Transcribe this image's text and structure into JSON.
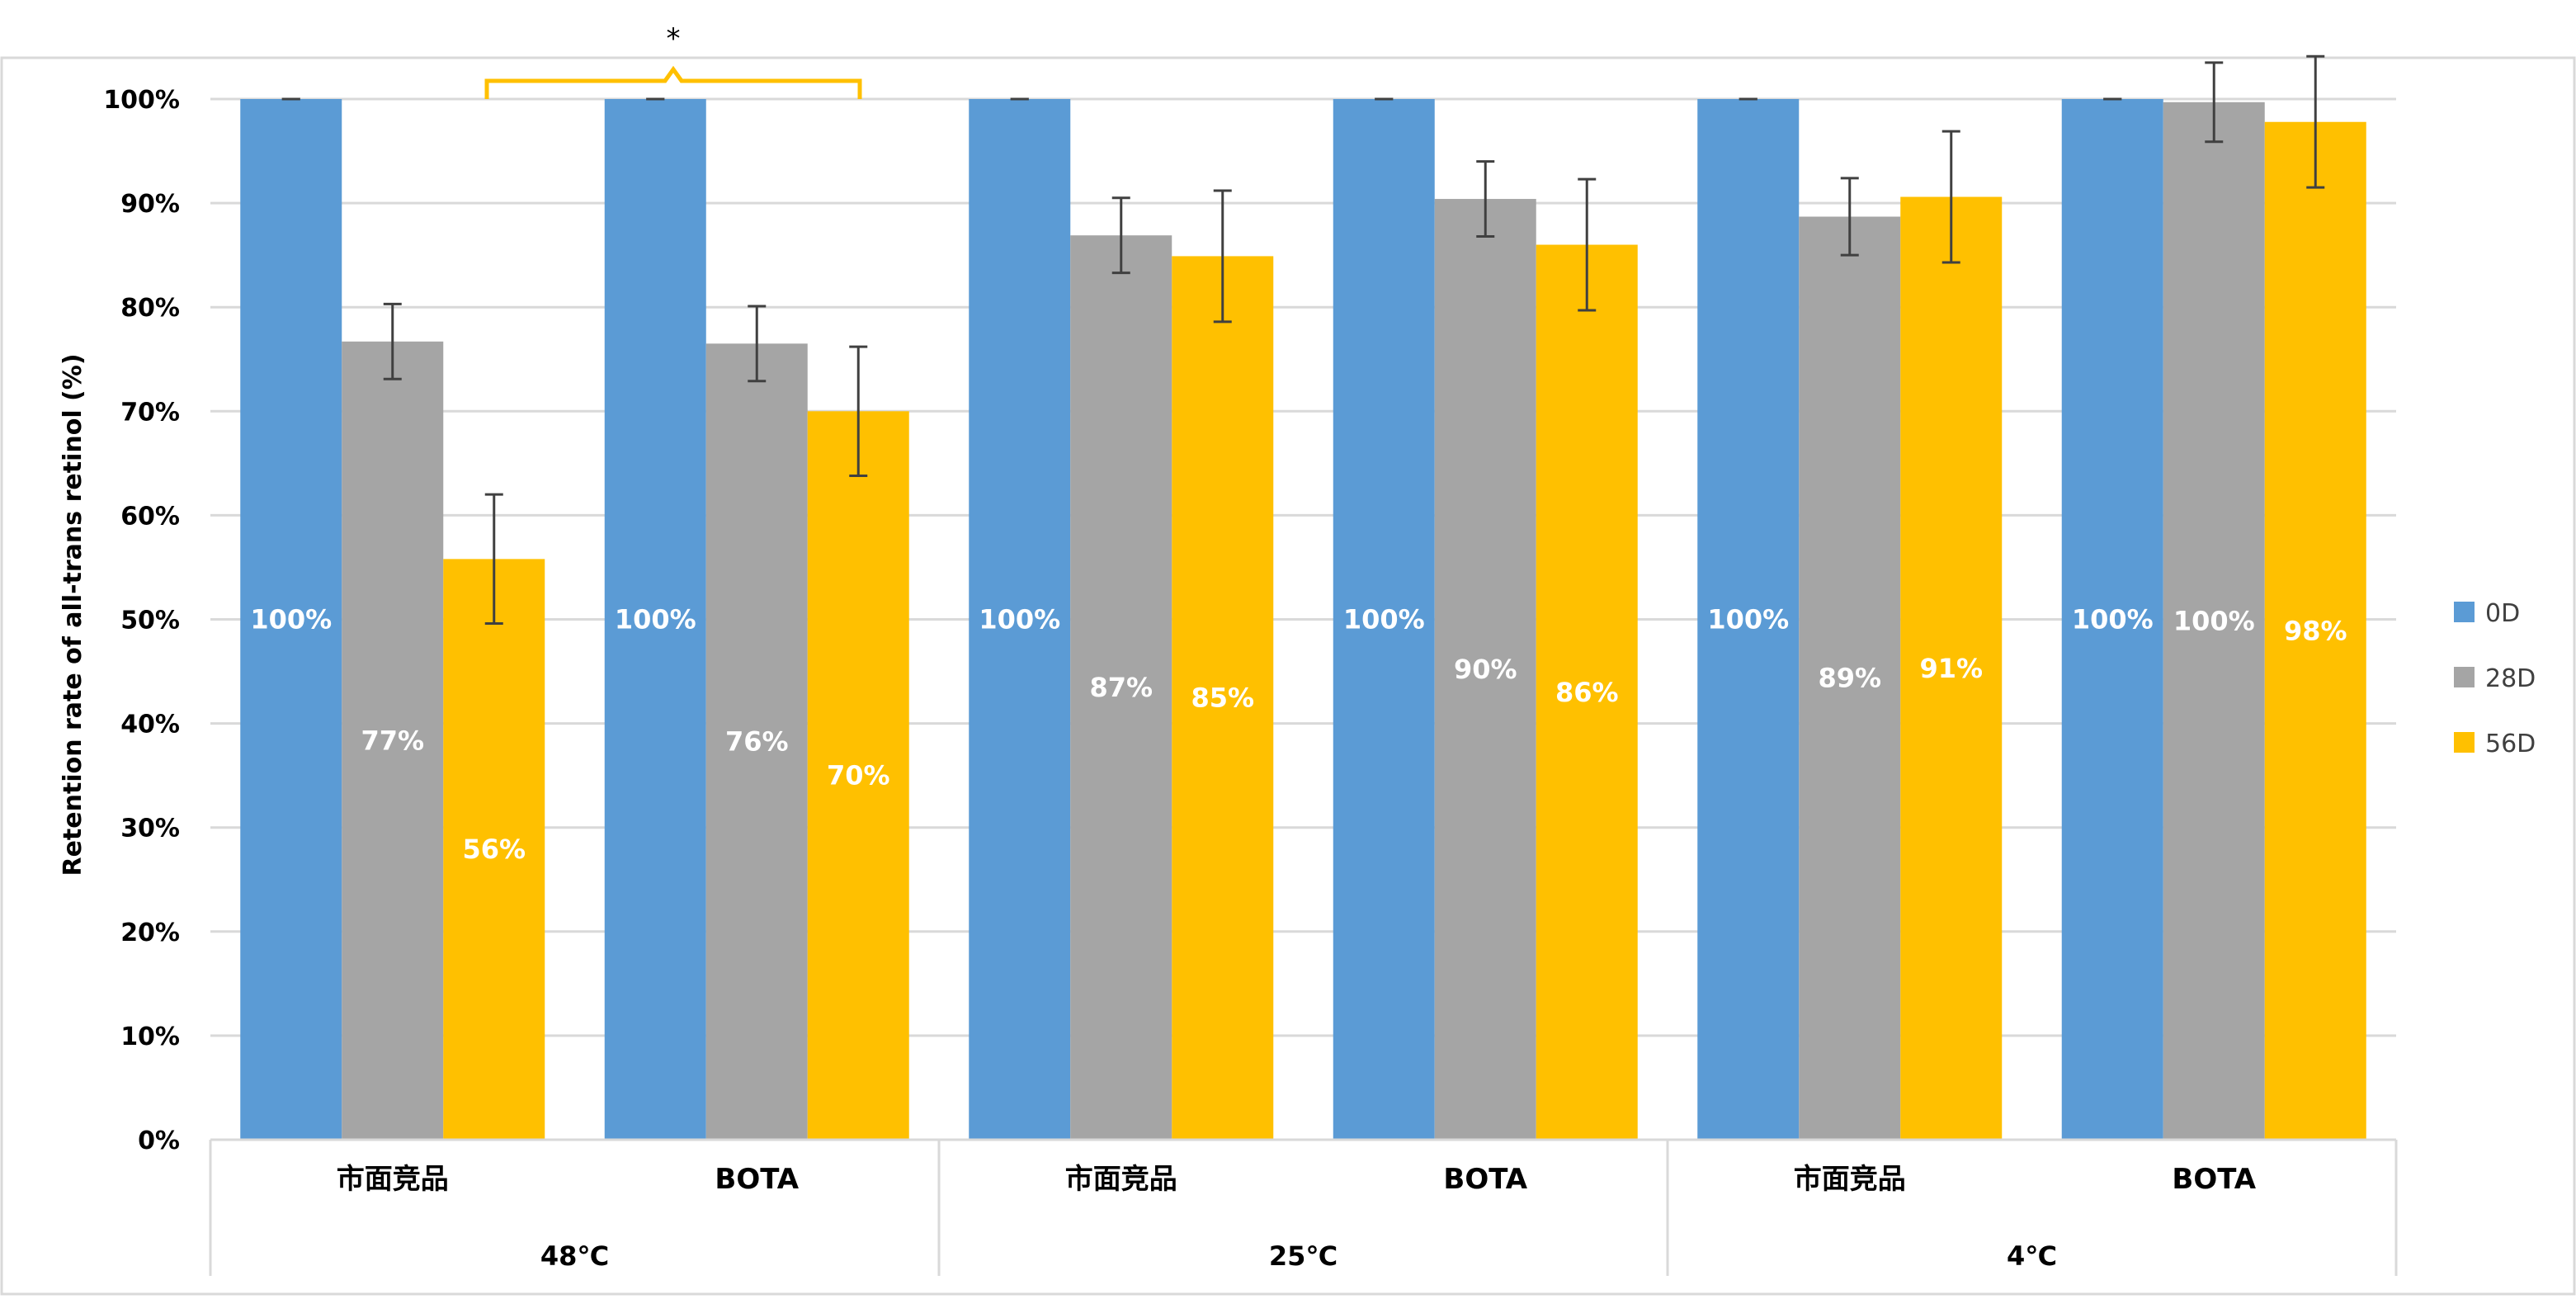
{
  "chart_data": {
    "type": "bar",
    "title": "",
    "xlabel": "",
    "ylabel": "Retention rate of all-trans retinol (%)",
    "ylim": [
      0,
      100
    ],
    "y_ticks": [
      "0%",
      "10%",
      "20%",
      "30%",
      "40%",
      "50%",
      "60%",
      "70%",
      "80%",
      "90%",
      "100%"
    ],
    "grid": true,
    "legend_position": "right",
    "groups": [
      {
        "label": "48℃",
        "categories": [
          "市面竞品",
          "BOTA"
        ]
      },
      {
        "label": "25℃",
        "categories": [
          "市面竞品",
          "BOTA"
        ]
      },
      {
        "label": "4℃",
        "categories": [
          "市面竞品",
          "BOTA"
        ]
      }
    ],
    "categories": [
      "市面竞品",
      "BOTA",
      "市面竞品",
      "BOTA",
      "市面竞品",
      "BOTA"
    ],
    "series": [
      {
        "name": "0D",
        "color": "#5B9BD5",
        "values": [
          100,
          100,
          100,
          100,
          100,
          100
        ],
        "errors": [
          0,
          0,
          0,
          0,
          0,
          0
        ],
        "labels": [
          "100%",
          "100%",
          "100%",
          "100%",
          "100%",
          "100%"
        ]
      },
      {
        "name": "28D",
        "color": "#A5A5A5",
        "values": [
          76.7,
          76.5,
          86.9,
          90.4,
          88.7,
          99.7
        ],
        "errors": [
          3.6,
          3.6,
          3.6,
          3.6,
          3.7,
          3.8
        ],
        "labels": [
          "77%",
          "76%",
          "87%",
          "90%",
          "89%",
          "100%"
        ]
      },
      {
        "name": "56D",
        "color": "#FFC000",
        "values": [
          55.8,
          70.0,
          84.9,
          86.0,
          90.6,
          97.8
        ],
        "errors": [
          6.2,
          6.2,
          6.3,
          6.3,
          6.3,
          6.3
        ],
        "labels": [
          "56%",
          "70%",
          "85%",
          "86%",
          "91%",
          "98%"
        ]
      }
    ],
    "annotations": [
      {
        "text": "*",
        "type": "significance-bracket",
        "between": [
          "48℃ 市面竞品",
          "48℃ BOTA"
        ],
        "color": "#FFC000"
      }
    ]
  }
}
